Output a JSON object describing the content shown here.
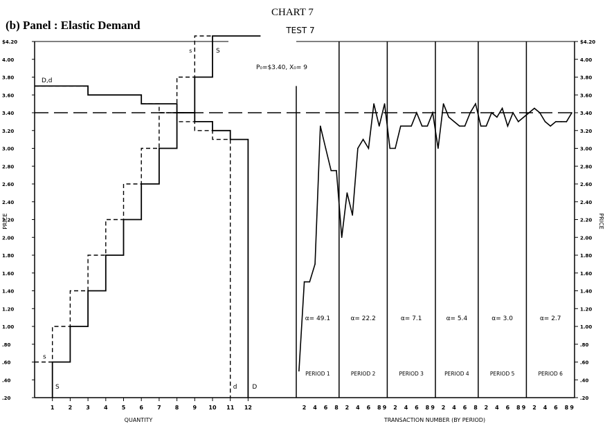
{
  "header": {
    "chart_number": "CHART 7",
    "test_label": "TEST 7",
    "panel_label": "(b) Panel : Elastic Demand"
  },
  "chart_data": {
    "type": "line",
    "title": "TEST 7",
    "ylabel": "PRICE",
    "ylim": [
      0.2,
      4.2
    ],
    "y_ticks": [
      "$4.20",
      "4.00",
      "3.80",
      "3.60",
      "3.40",
      "3.20",
      "3.00",
      "2.80",
      "2.60",
      "2.40",
      "2.20",
      "2.00",
      "1.80",
      "1.60",
      "1.40",
      "1.20",
      "1.00",
      ".80",
      ".60",
      ".40",
      ".20"
    ],
    "right_y_ticks": [
      "$4.20",
      "4.00",
      "3.80",
      "3.60",
      "3.40",
      "3.20",
      "3.00",
      "2.80",
      "2.60",
      "2.40",
      "2.20",
      "2.00",
      "1.80",
      "1.60",
      "1.40",
      "1.20",
      "1.00",
      ".80",
      ".60",
      ".40",
      ".20"
    ],
    "equilibrium": {
      "price": 3.4,
      "label": "P₀=$3.40,  X₀= 9"
    },
    "left_panel": {
      "xlabel": "QUANTITY",
      "x_ticks": [
        "1",
        "2",
        "3",
        "4",
        "5",
        "6",
        "7",
        "8",
        "9",
        "10",
        "11",
        "12"
      ],
      "xlim": [
        0,
        13
      ],
      "curve_labels": {
        "Dd": "D,d",
        "s_low": "s",
        "S_low": "S",
        "s_high": "s",
        "S_high": "S",
        "d_end": "d",
        "D_end": "D"
      },
      "demand_D": [
        [
          0,
          3.7
        ],
        [
          3,
          3.7
        ],
        [
          3,
          3.6
        ],
        [
          6,
          3.6
        ],
        [
          6,
          3.5
        ],
        [
          8,
          3.5
        ],
        [
          8,
          3.4
        ],
        [
          9,
          3.4
        ],
        [
          9,
          3.3
        ],
        [
          10,
          3.3
        ],
        [
          10,
          3.2
        ],
        [
          11,
          3.2
        ],
        [
          11,
          3.1
        ],
        [
          12,
          3.1
        ],
        [
          12,
          0.2
        ]
      ],
      "demand_d": [
        [
          0,
          3.7
        ],
        [
          3,
          3.7
        ],
        [
          3,
          3.6
        ],
        [
          6,
          3.6
        ],
        [
          6,
          3.5
        ],
        [
          7,
          3.5
        ],
        [
          7,
          3.4
        ],
        [
          8,
          3.4
        ],
        [
          8,
          3.3
        ],
        [
          9,
          3.3
        ],
        [
          9,
          3.2
        ],
        [
          10,
          3.2
        ],
        [
          10,
          3.1
        ],
        [
          11,
          3.1
        ],
        [
          11,
          0.2
        ]
      ],
      "supply_S": [
        [
          1,
          0.2
        ],
        [
          1,
          0.6
        ],
        [
          2,
          0.6
        ],
        [
          2,
          1.0
        ],
        [
          3,
          1.0
        ],
        [
          3,
          1.4
        ],
        [
          4,
          1.4
        ],
        [
          4,
          1.8
        ],
        [
          5,
          1.8
        ],
        [
          5,
          2.2
        ],
        [
          6,
          2.2
        ],
        [
          6,
          2.6
        ],
        [
          7,
          2.6
        ],
        [
          7,
          3.0
        ],
        [
          8,
          3.0
        ],
        [
          8,
          3.4
        ],
        [
          9,
          3.4
        ],
        [
          9,
          3.8
        ],
        [
          10,
          3.8
        ],
        [
          10,
          4.3
        ],
        [
          12.7,
          4.3
        ]
      ],
      "supply_s": [
        [
          0,
          0.6
        ],
        [
          1,
          0.6
        ],
        [
          1,
          1.0
        ],
        [
          2,
          1.0
        ],
        [
          2,
          1.4
        ],
        [
          3,
          1.4
        ],
        [
          3,
          1.8
        ],
        [
          4,
          1.8
        ],
        [
          4,
          2.2
        ],
        [
          5,
          2.2
        ],
        [
          5,
          2.6
        ],
        [
          6,
          2.6
        ],
        [
          6,
          3.0
        ],
        [
          7,
          3.0
        ],
        [
          7,
          3.4
        ],
        [
          8,
          3.4
        ],
        [
          8,
          3.8
        ],
        [
          9,
          3.8
        ],
        [
          9,
          4.3
        ],
        [
          10,
          4.3
        ]
      ]
    },
    "right_panel": {
      "xlabel": "TRANSACTION NUMBER (BY PERIOD)",
      "periods": [
        {
          "label": "PERIOD 1",
          "alpha": "α= 49.1",
          "ticks": [
            "2",
            "4",
            "6",
            "8"
          ],
          "n": 8
        },
        {
          "label": "PERIOD 2",
          "alpha": "α= 22.2",
          "ticks": [
            "2",
            "4",
            "6",
            "8",
            "9"
          ],
          "n": 9
        },
        {
          "label": "PERIOD 3",
          "alpha": "α= 7.1",
          "ticks": [
            "2",
            "4",
            "6",
            "8",
            "9"
          ],
          "n": 9
        },
        {
          "label": "PERIOD 4",
          "alpha": "α= 5.4",
          "ticks": [
            "2",
            "4",
            "6",
            "8"
          ],
          "n": 8
        },
        {
          "label": "PERIOD 5",
          "alpha": "α= 3.0",
          "ticks": [
            "2",
            "4",
            "6",
            "8",
            "9"
          ],
          "n": 9
        },
        {
          "label": "PERIOD 6",
          "alpha": "α= 2.7",
          "ticks": [
            "2",
            "4",
            "6",
            "8",
            "9"
          ],
          "n": 9
        }
      ],
      "series": [
        {
          "values": [
            0.5,
            1.5,
            1.5,
            1.7,
            3.25,
            3.0,
            2.75,
            2.75
          ]
        },
        {
          "values": [
            2.0,
            2.5,
            2.25,
            3.0,
            3.1,
            3.0,
            3.5,
            3.25,
            3.5
          ]
        },
        {
          "values": [
            3.0,
            3.0,
            3.25,
            3.25,
            3.25,
            3.4,
            3.25,
            3.25,
            3.4
          ]
        },
        {
          "values": [
            3.0,
            3.5,
            3.35,
            3.3,
            3.25,
            3.25,
            3.4,
            3.5
          ]
        },
        {
          "values": [
            3.25,
            3.25,
            3.4,
            3.35,
            3.45,
            3.25,
            3.4,
            3.3,
            3.35
          ]
        },
        {
          "values": [
            3.4,
            3.45,
            3.4,
            3.3,
            3.25,
            3.3,
            3.3,
            3.3,
            3.4
          ]
        }
      ]
    }
  }
}
